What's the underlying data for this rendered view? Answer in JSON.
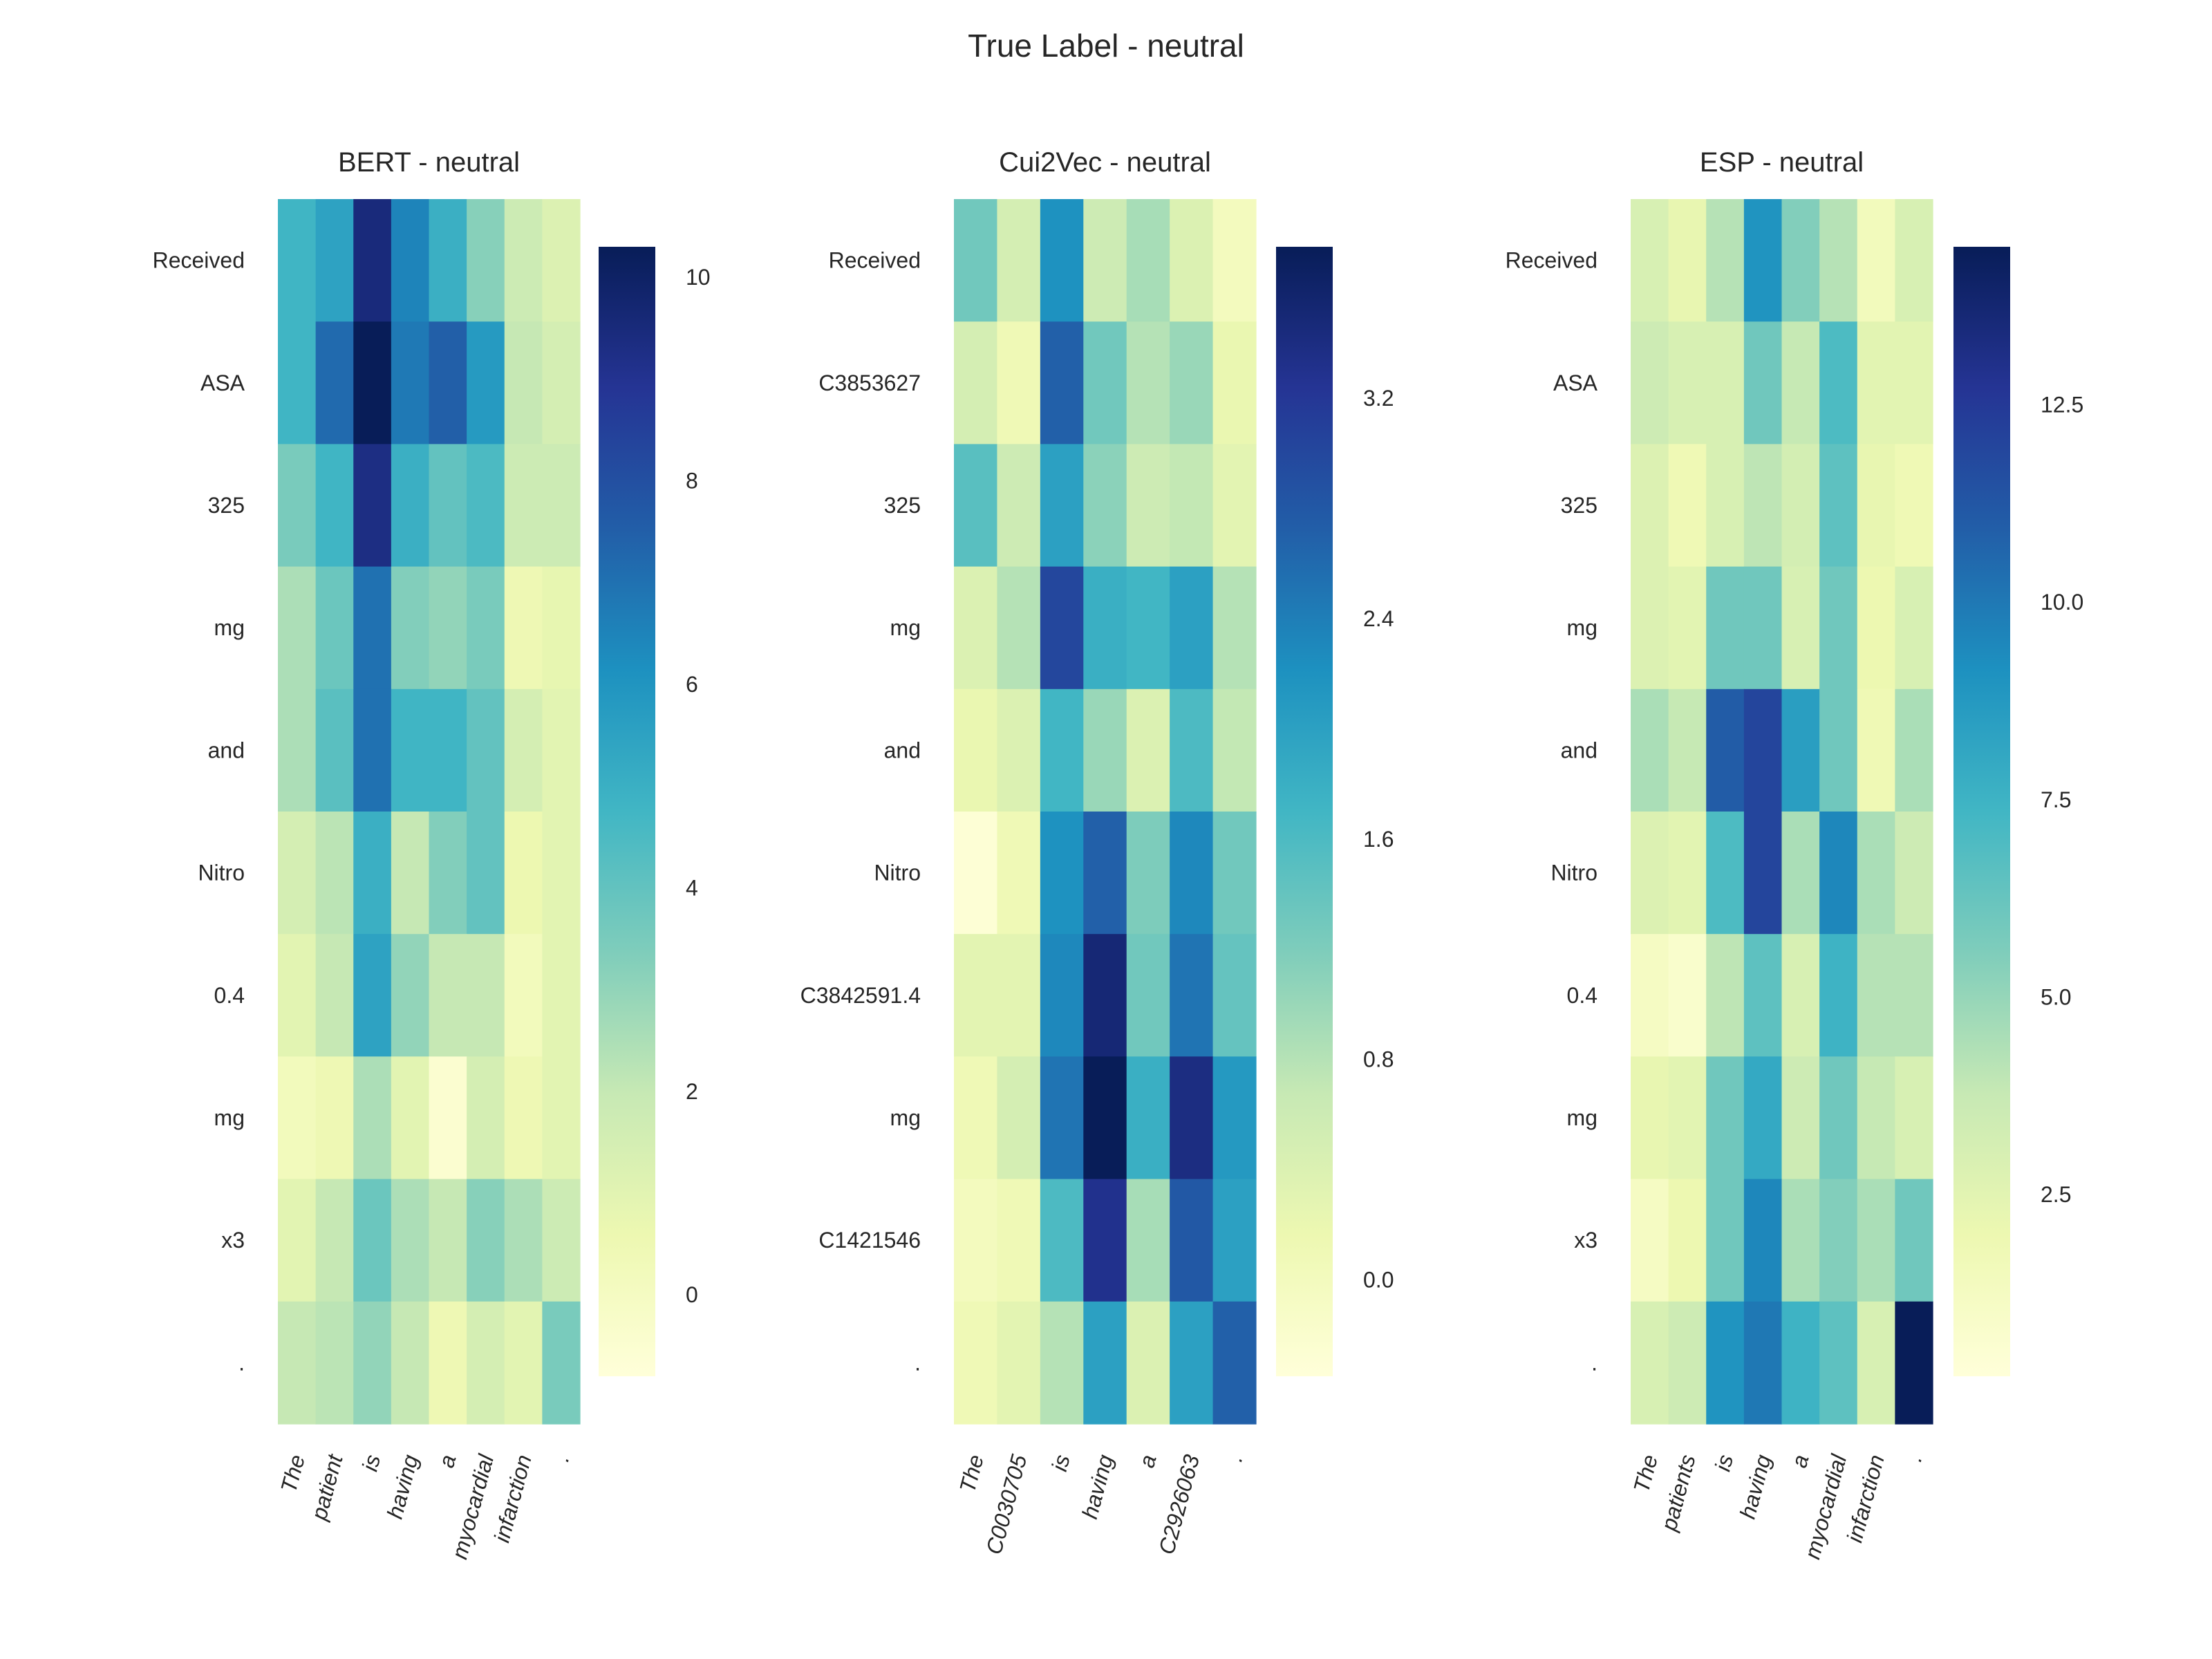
{
  "figure_title": "True Label - neutral",
  "colormap": "YlGnBu",
  "colormap_stops": [
    "#ffffd9",
    "#edf8b1",
    "#c7e9b4",
    "#7fcdbb",
    "#41b6c4",
    "#1d91c0",
    "#225ea8",
    "#253494",
    "#081d58"
  ],
  "chart_data": [
    {
      "type": "heatmap",
      "title": "BERT - neutral",
      "x_labels": [
        "The",
        "patient",
        "is",
        "having",
        "a",
        "myocardial",
        "infarction",
        "."
      ],
      "y_labels": [
        "Received",
        "ASA",
        "325",
        "mg",
        "and",
        "Nitro",
        "0.4",
        "mg",
        "x3",
        "."
      ],
      "vmin": -0.8,
      "vmax": 10.3,
      "colorbar_ticks": [
        "0",
        "2",
        "4",
        "6",
        "8",
        "10"
      ],
      "colorbar_tick_values": [
        0,
        2,
        4,
        6,
        8,
        10
      ],
      "values": [
        [
          4.8,
          5.5,
          9.5,
          6.5,
          5.0,
          3.2,
          1.8,
          1.2
        ],
        [
          4.8,
          7.2,
          10.3,
          6.8,
          7.5,
          5.8,
          2.0,
          1.5
        ],
        [
          3.5,
          4.8,
          9.3,
          5.0,
          4.0,
          4.5,
          1.8,
          1.8
        ],
        [
          2.5,
          3.8,
          7.0,
          3.3,
          3.0,
          3.5,
          0.5,
          0.8
        ],
        [
          2.5,
          4.2,
          7.0,
          4.8,
          4.8,
          4.0,
          1.5,
          1.0
        ],
        [
          1.5,
          2.2,
          5.0,
          2.0,
          3.3,
          4.0,
          0.6,
          1.0
        ],
        [
          1.0,
          2.0,
          5.5,
          3.0,
          2.0,
          2.0,
          0.2,
          1.0
        ],
        [
          0.2,
          0.5,
          2.5,
          1.0,
          -0.5,
          1.5,
          0.5,
          1.0
        ],
        [
          1.0,
          2.0,
          3.8,
          2.5,
          2.0,
          3.2,
          2.5,
          1.8
        ],
        [
          2.0,
          2.2,
          3.0,
          2.0,
          0.5,
          1.5,
          1.0,
          3.5
        ]
      ]
    },
    {
      "type": "heatmap",
      "title": "Cui2Vec - neutral",
      "x_labels": [
        "The",
        "C0030705",
        "is",
        "having",
        "a",
        "C2926063",
        "."
      ],
      "y_labels": [
        "Received",
        "C3853627",
        "325",
        "mg",
        "and",
        "Nitro",
        "C3842591.4",
        "mg",
        "C1421546",
        "."
      ],
      "vmin": -0.35,
      "vmax": 3.75,
      "colorbar_ticks": [
        "0.0",
        "0.8",
        "1.6",
        "2.4",
        "3.2"
      ],
      "colorbar_tick_values": [
        0.0,
        0.8,
        1.6,
        2.4,
        3.2
      ],
      "values": [
        [
          1.3,
          0.5,
          2.2,
          0.6,
          0.9,
          0.4,
          0.0
        ],
        [
          0.5,
          0.1,
          2.7,
          1.3,
          0.8,
          1.0,
          0.2
        ],
        [
          1.5,
          0.6,
          2.0,
          1.1,
          0.6,
          0.7,
          0.3
        ],
        [
          0.4,
          0.8,
          3.0,
          1.8,
          1.7,
          2.0,
          0.8
        ],
        [
          0.2,
          0.4,
          1.7,
          1.0,
          0.4,
          1.6,
          0.7
        ],
        [
          -0.3,
          0.1,
          2.2,
          2.7,
          1.2,
          2.3,
          1.3
        ],
        [
          0.3,
          0.3,
          2.3,
          3.5,
          1.3,
          2.5,
          1.4
        ],
        [
          0.1,
          0.5,
          2.5,
          3.8,
          1.8,
          3.4,
          2.1
        ],
        [
          0.0,
          0.1,
          1.6,
          3.3,
          0.9,
          2.8,
          2.0
        ],
        [
          0.1,
          0.3,
          0.8,
          2.0,
          0.4,
          2.0,
          2.7
        ]
      ]
    },
    {
      "type": "heatmap",
      "title": "ESP - neutral",
      "x_labels": [
        "The",
        "patients",
        "is",
        "having",
        "a",
        "myocardial",
        "infarction",
        "."
      ],
      "y_labels": [
        "Received",
        "ASA",
        "325",
        "mg",
        "and",
        "Nitro",
        "0.4",
        "mg",
        "x3",
        "."
      ],
      "vmin": 0.2,
      "vmax": 14.5,
      "colorbar_ticks": [
        "2.5",
        "5.0",
        "7.5",
        "10.0",
        "12.5"
      ],
      "colorbar_tick_values": [
        2.5,
        5.0,
        7.5,
        10.0,
        12.5
      ],
      "values": [
        [
          3.0,
          2.2,
          4.2,
          9.0,
          5.5,
          4.2,
          1.5,
          3.0
        ],
        [
          3.5,
          3.0,
          3.0,
          6.0,
          3.8,
          7.0,
          2.5,
          2.5
        ],
        [
          2.8,
          1.8,
          3.0,
          4.0,
          3.2,
          6.5,
          2.2,
          1.8
        ],
        [
          2.8,
          2.5,
          6.0,
          6.0,
          3.0,
          6.0,
          2.0,
          3.0
        ],
        [
          4.5,
          3.8,
          11.0,
          12.0,
          8.5,
          6.0,
          1.8,
          4.5
        ],
        [
          2.8,
          2.5,
          7.0,
          12.0,
          4.5,
          9.5,
          4.5,
          3.5
        ],
        [
          1.2,
          0.8,
          4.0,
          6.5,
          3.0,
          7.5,
          4.2,
          4.2
        ],
        [
          2.2,
          2.5,
          6.0,
          8.0,
          3.5,
          6.0,
          3.8,
          3.0
        ],
        [
          1.2,
          2.0,
          6.0,
          9.5,
          4.5,
          5.5,
          4.5,
          6.0
        ],
        [
          3.0,
          3.5,
          9.0,
          10.0,
          7.5,
          6.5,
          3.0,
          14.5
        ]
      ]
    }
  ]
}
